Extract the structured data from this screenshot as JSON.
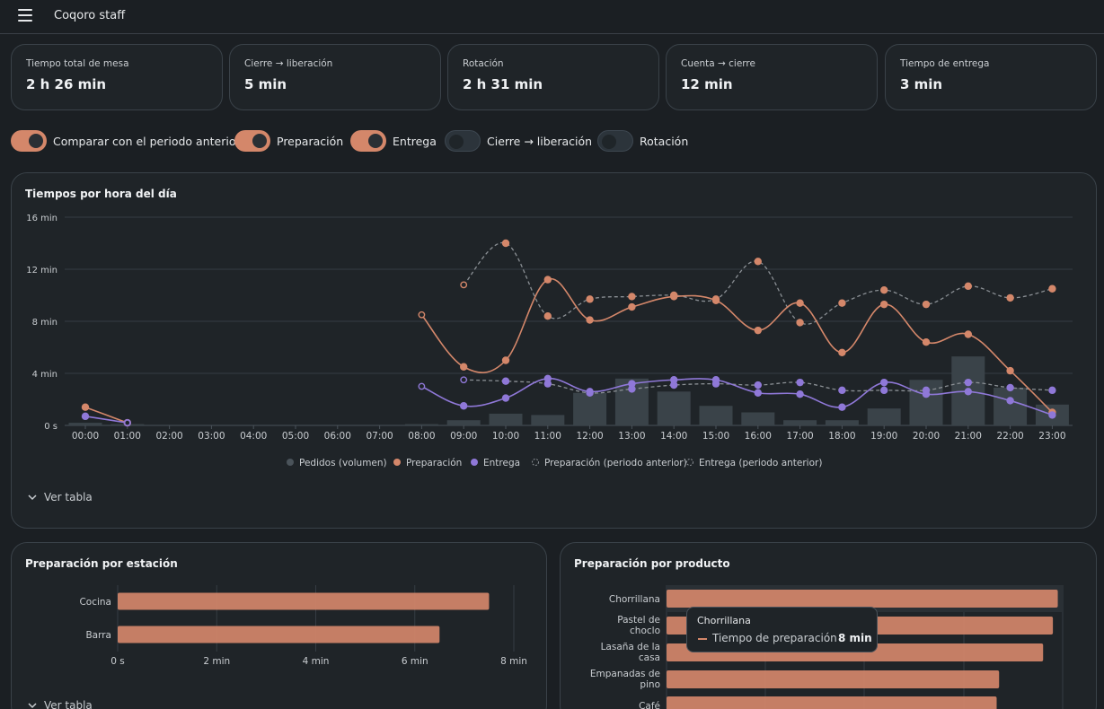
{
  "app": {
    "title": "Coqoro staff",
    "menu_icon": "hamburger-icon"
  },
  "kpis": [
    {
      "label": "Tiempo total de mesa",
      "value": "2 h 26 min"
    },
    {
      "label": "Cierre → liberación",
      "value": "5 min"
    },
    {
      "label": "Rotación",
      "value": "2 h 31 min"
    },
    {
      "label": "Cuenta → cierre",
      "value": "12 min"
    },
    {
      "label": "Tiempo de entrega",
      "value": "3 min"
    }
  ],
  "toggles": [
    {
      "label": "Comparar con el periodo anterior",
      "on": true
    },
    {
      "label": "Preparación",
      "on": true
    },
    {
      "label": "Entrega",
      "on": true
    },
    {
      "label": "Cierre → liberación",
      "on": false
    },
    {
      "label": "Rotación",
      "on": false
    }
  ],
  "colors": {
    "preparacion": "#d4876a",
    "entrega": "#8f78d8",
    "pedidos": "#3a4349",
    "previous": "#8a8f94"
  },
  "hourly_card": {
    "title": "Tiempos por hora del día",
    "ver_tabla": "Ver tabla"
  },
  "station_card": {
    "title": "Preparación por estación",
    "ver_tabla": "Ver tabla"
  },
  "product_card": {
    "title": "Preparación por producto"
  },
  "tooltip": {
    "title": "Chorrillana",
    "series": "Tiempo de preparación",
    "value": "8 min"
  },
  "chart_data": [
    {
      "type": "line",
      "title": "Tiempos por hora del día",
      "x": [
        "00:00",
        "01:00",
        "02:00",
        "03:00",
        "04:00",
        "05:00",
        "06:00",
        "07:00",
        "08:00",
        "09:00",
        "10:00",
        "11:00",
        "12:00",
        "13:00",
        "14:00",
        "15:00",
        "16:00",
        "17:00",
        "18:00",
        "19:00",
        "20:00",
        "21:00",
        "22:00",
        "23:00"
      ],
      "yticks": [
        "0 s",
        "4 min",
        "8 min",
        "12 min",
        "16 min"
      ],
      "ylim": [
        0,
        16
      ],
      "grid": "horizontal",
      "legend_position": "bottom",
      "series": [
        {
          "name": "Pedidos (volumen)",
          "kind": "bar",
          "values": [
            0.2,
            0.1,
            null,
            null,
            null,
            null,
            null,
            null,
            0.1,
            0.4,
            0.9,
            0.8,
            2.5,
            3.6,
            2.6,
            1.5,
            1.0,
            0.4,
            0.4,
            1.3,
            3.5,
            5.3,
            2.9,
            1.6
          ]
        },
        {
          "name": "Preparación",
          "kind": "line",
          "values": [
            1.4,
            0.2,
            null,
            null,
            null,
            null,
            null,
            null,
            8.5,
            4.5,
            5.0,
            11.2,
            8.1,
            9.1,
            9.9,
            9.6,
            7.3,
            9.4,
            5.6,
            9.3,
            6.4,
            7.0,
            4.2,
            1.0
          ]
        },
        {
          "name": "Entrega",
          "kind": "line",
          "values": [
            0.7,
            0.2,
            null,
            null,
            null,
            null,
            null,
            null,
            3.0,
            1.5,
            2.1,
            3.6,
            2.6,
            3.2,
            3.5,
            3.5,
            2.5,
            2.4,
            1.4,
            3.3,
            2.4,
            2.6,
            1.9,
            0.8
          ]
        },
        {
          "name": "Preparación (periodo anterior)",
          "kind": "line-dashed",
          "values": [
            null,
            null,
            null,
            null,
            null,
            null,
            null,
            null,
            null,
            10.8,
            14.0,
            8.4,
            9.7,
            9.9,
            10.0,
            9.7,
            12.6,
            7.9,
            9.4,
            10.4,
            9.3,
            10.7,
            9.8,
            10.5
          ]
        },
        {
          "name": "Entrega (periodo anterior)",
          "kind": "line-dashed",
          "values": [
            null,
            null,
            null,
            null,
            null,
            null,
            null,
            null,
            null,
            3.5,
            3.4,
            3.2,
            2.5,
            2.8,
            3.1,
            3.2,
            3.1,
            3.3,
            2.7,
            2.7,
            2.7,
            3.3,
            2.9,
            2.7
          ]
        }
      ]
    },
    {
      "type": "bar",
      "orientation": "horizontal",
      "title": "Preparación por estación",
      "categories": [
        "Cocina",
        "Barra"
      ],
      "values": [
        7.5,
        6.5
      ],
      "xticks": [
        "0 s",
        "2 min",
        "4 min",
        "6 min",
        "8 min"
      ],
      "xlim": [
        0,
        8
      ]
    },
    {
      "type": "bar",
      "orientation": "horizontal",
      "title": "Preparación por producto",
      "categories": [
        [
          "Chorrillana"
        ],
        [
          "Pastel de",
          "choclo"
        ],
        [
          "Lasaña de la",
          "casa"
        ],
        [
          "Empanadas de",
          "pino"
        ],
        [
          "Café"
        ]
      ],
      "values": [
        8.0,
        7.9,
        7.7,
        6.8,
        6.75
      ],
      "xlim": [
        0,
        8.1
      ]
    }
  ]
}
